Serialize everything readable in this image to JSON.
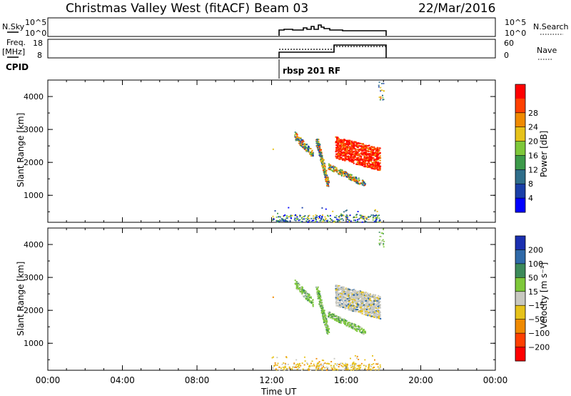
{
  "header": {
    "station": "Christmas Valley West (fitACF)",
    "beam": "Beam 03",
    "date": "22/Mar/2016"
  },
  "top_panels": {
    "nsky_label": "N.Sky",
    "nsky_ticks": [
      "10^5",
      "10^0"
    ],
    "nsky_right_ticks": [
      "10^5",
      "10^0"
    ],
    "nsearch_label": "N.Search",
    "freq_label": "Freq.",
    "freq_unit": "[MHz]",
    "freq_ticks": [
      "18",
      "8"
    ],
    "nave_ticks": [
      "60",
      "0"
    ],
    "nave_label": "Nave",
    "cpid_label": "CPID",
    "cpid_text": "rbsp 201 RF"
  },
  "x_axis": {
    "label": "Time UT",
    "ticks": [
      "00:00",
      "04:00",
      "08:00",
      "12:00",
      "16:00",
      "20:00",
      "00:00"
    ]
  },
  "chart_data": [
    {
      "type": "heatmap",
      "panel": "power",
      "ylabel": "Slant Range [km]",
      "yticks": [
        "1000",
        "2000",
        "3000",
        "4000"
      ],
      "ylim": [
        180,
        4500
      ],
      "xlim_hours": [
        0,
        24
      ],
      "colorbar": {
        "label": "Power [dB]",
        "ticks": [
          "4",
          "8",
          "12",
          "16",
          "20",
          "24",
          "28"
        ],
        "colors": [
          "#0000ff",
          "#1a3fa8",
          "#2f6e8a",
          "#3c9a4a",
          "#7ec83a",
          "#e6c21a",
          "#f08a00",
          "#ff4000",
          "#ff0000"
        ]
      },
      "regions": [
        {
          "t_start": 14.2,
          "t_end": 15.2,
          "r_start": 1300,
          "r_end": 2800,
          "level": "mixed-low"
        },
        {
          "t_start": 15.4,
          "t_end": 17.8,
          "r_start": 1600,
          "r_end": 2800,
          "level": "high"
        },
        {
          "t_start": 12.0,
          "t_end": 17.8,
          "r_start": 200,
          "r_end": 500,
          "level": "low"
        }
      ]
    },
    {
      "type": "heatmap",
      "panel": "velocity",
      "ylabel": "Slant Range [km]",
      "yticks": [
        "1000",
        "2000",
        "3000",
        "4000"
      ],
      "ylim": [
        180,
        4500
      ],
      "xlim_hours": [
        0,
        24
      ],
      "colorbar": {
        "label": "Velocity [m s⁻¹]",
        "ticks": [
          "200",
          "100",
          "50",
          "15",
          "−15",
          "−50",
          "−100",
          "−200"
        ],
        "colors": [
          "#1a2fb0",
          "#2f6aa8",
          "#3c8a5a",
          "#7ec83a",
          "#c8c8c0",
          "#e6c21a",
          "#f08a00",
          "#ff4000",
          "#ff0000"
        ]
      },
      "regions": [
        {
          "t_start": 14.2,
          "t_end": 15.2,
          "r_start": 1300,
          "r_end": 2800,
          "level": "+15..+50"
        },
        {
          "t_start": 15.4,
          "t_end": 17.8,
          "r_start": 1600,
          "r_end": 3000,
          "level": "-15..+15"
        },
        {
          "t_start": 12.0,
          "t_end": 17.8,
          "r_start": 200,
          "r_end": 500,
          "level": "-50..-15"
        }
      ]
    }
  ]
}
